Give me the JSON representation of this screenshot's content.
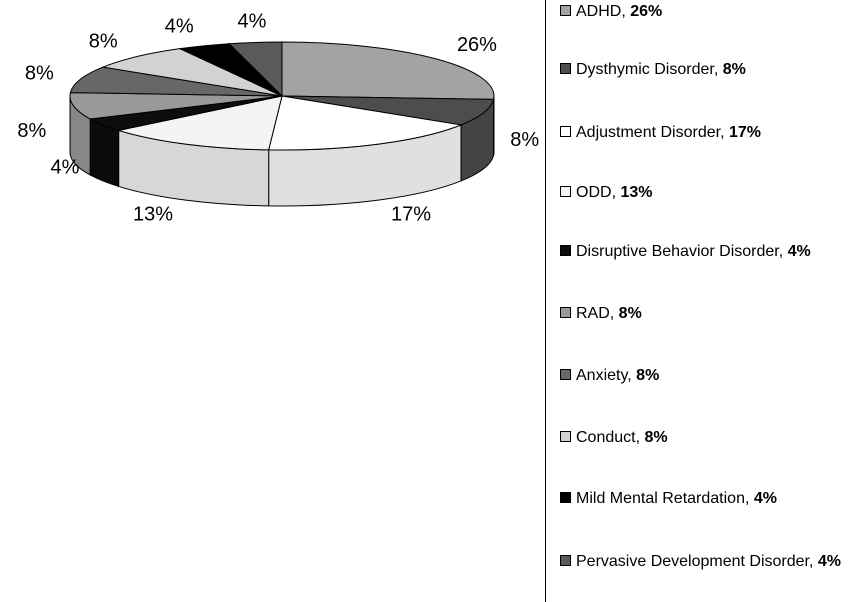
{
  "chart_data": {
    "type": "pie",
    "title": "",
    "three_d": true,
    "legend_position": "right",
    "slices": [
      {
        "label": "ADHD",
        "value": 26,
        "value_label": "26%",
        "color": "#a3a3a3"
      },
      {
        "label": "Dysthymic Disorder",
        "value": 8,
        "value_label": "8%",
        "color": "#4d4d4d"
      },
      {
        "label": "Adjustment Disorder",
        "value": 17,
        "value_label": "17%",
        "color": "#ffffff"
      },
      {
        "label": "ODD",
        "value": 13,
        "value_label": "13%",
        "color": "#f4f4f4"
      },
      {
        "label": "Disruptive Behavior Disorder",
        "value": 4,
        "value_label": "4%",
        "color": "#0d0d0d"
      },
      {
        "label": "RAD",
        "value": 8,
        "value_label": "8%",
        "color": "#999999"
      },
      {
        "label": "Anxiety",
        "value": 8,
        "value_label": "8%",
        "color": "#676767"
      },
      {
        "label": "Conduct",
        "value": 8,
        "value_label": "8%",
        "color": "#d2d2d2"
      },
      {
        "label": "Mild Mental Retardation",
        "value": 4,
        "value_label": "4%",
        "color": "#000000"
      },
      {
        "label": "Pervasive Development Disorder",
        "value": 4,
        "value_label": "4%",
        "color": "#5a5a5a"
      }
    ]
  }
}
